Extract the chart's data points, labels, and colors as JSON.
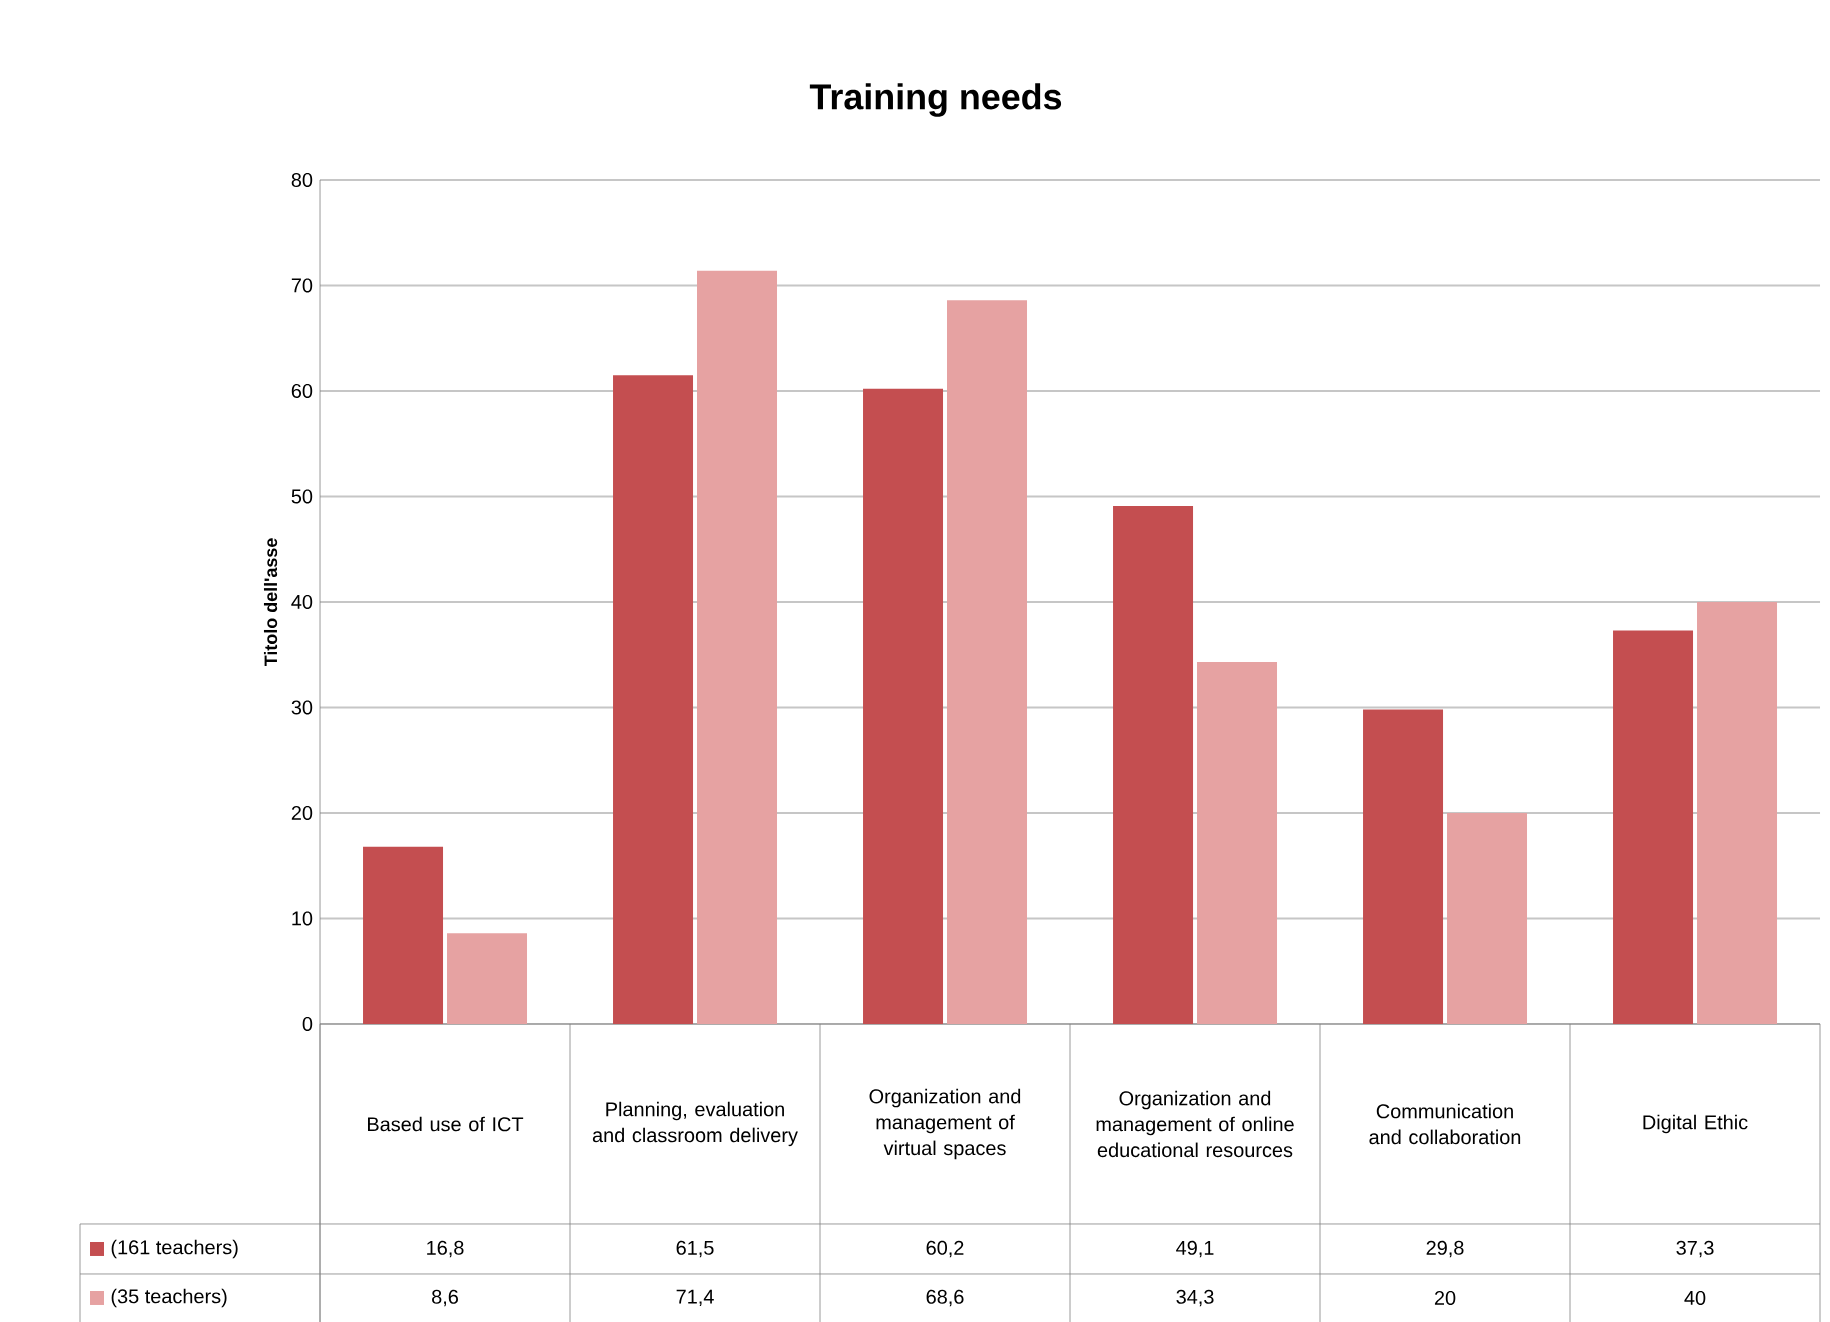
{
  "chart_data": {
    "type": "bar",
    "title": "Training needs",
    "ylabel": "Titolo dell'asse",
    "categories": [
      "Based use of ICT",
      "Planning, evaluation and classroom delivery",
      "Organization and management of virtual spaces",
      "Organization and management of online educational resources",
      "Communication and collaboration",
      "Digital Ethic"
    ],
    "series": [
      {
        "name": "(161 teachers)",
        "color": "#c44e50",
        "values": [
          16.8,
          61.5,
          60.2,
          49.1,
          29.8,
          37.3
        ],
        "value_labels": [
          "16,8",
          "61,5",
          "60,2",
          "49,1",
          "29,8",
          "37,3"
        ]
      },
      {
        "name": "(35 teachers)",
        "color": "#e6a2a2",
        "values": [
          8.6,
          71.4,
          68.6,
          34.3,
          20,
          40
        ],
        "value_labels": [
          "8,6",
          "71,4",
          "68,6",
          "34,3",
          "20",
          "40"
        ]
      }
    ],
    "ylim": [
      0,
      80
    ],
    "yticks": [
      0,
      10,
      20,
      30,
      40,
      50,
      60,
      70,
      80
    ],
    "grid": "y",
    "legend": "bottom"
  }
}
